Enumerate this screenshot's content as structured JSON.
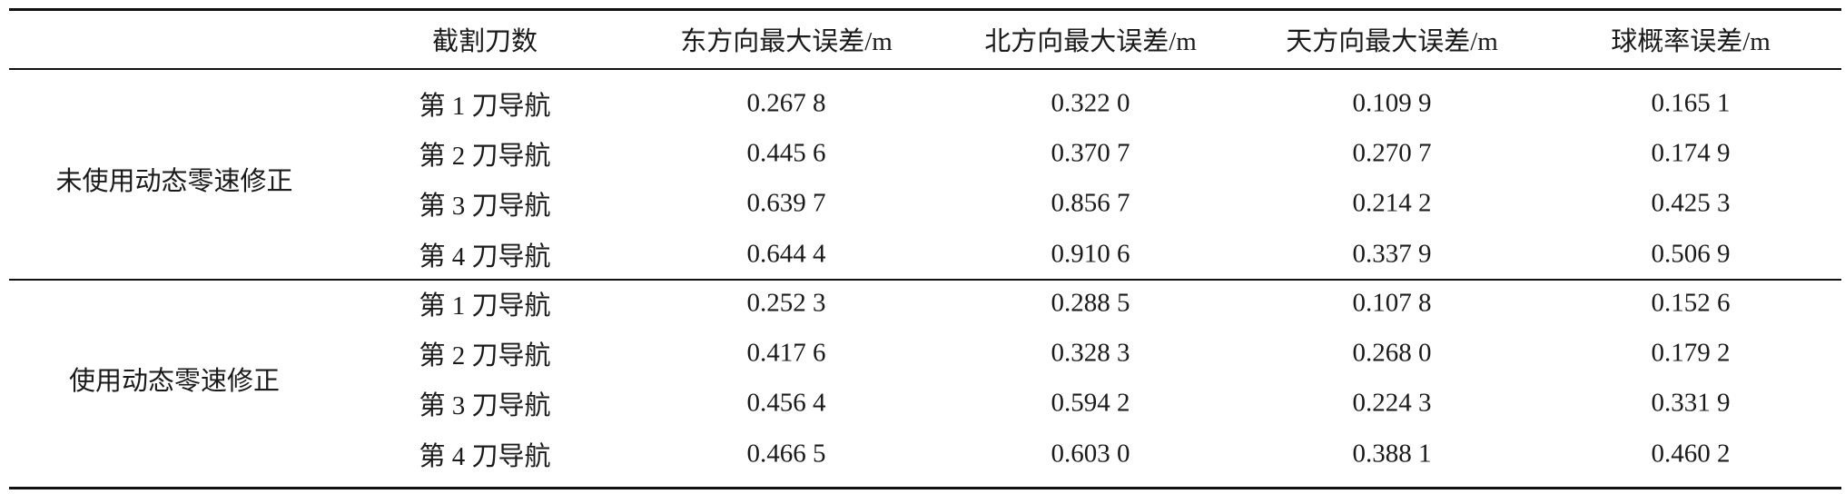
{
  "table": {
    "header": [
      "截割刀数",
      "东方向最大误差/m",
      "北方向最大误差/m",
      "天方向最大误差/m",
      "球概率误差/m"
    ],
    "groups": [
      {
        "label": "未使用动态零速修正",
        "rows": [
          [
            "第 1 刀导航",
            "0.267 8",
            "0.322 0",
            "0.109 9",
            "0.165 1"
          ],
          [
            "第 2 刀导航",
            "0.445 6",
            "0.370 7",
            "0.270 7",
            "0.174 9"
          ],
          [
            "第 3 刀导航",
            "0.639 7",
            "0.856 7",
            "0.214 2",
            "0.425 3"
          ],
          [
            "第 4 刀导航",
            "0.644 4",
            "0.910 6",
            "0.337 9",
            "0.506 9"
          ]
        ]
      },
      {
        "label": "使用动态零速修正",
        "rows": [
          [
            "第 1 刀导航",
            "0.252 3",
            "0.288 5",
            "0.107 8",
            "0.152 6"
          ],
          [
            "第 2 刀导航",
            "0.417 6",
            "0.328 3",
            "0.268 0",
            "0.179 2"
          ],
          [
            "第 3 刀导航",
            "0.456 4",
            "0.594 2",
            "0.224 3",
            "0.331 9"
          ],
          [
            "第 4 刀导航",
            "0.466 5",
            "0.603 0",
            "0.388 1",
            "0.460 2"
          ]
        ]
      }
    ]
  }
}
